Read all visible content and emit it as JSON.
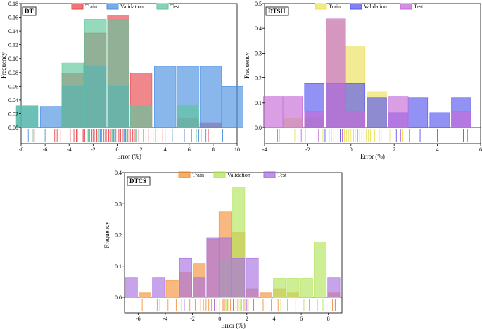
{
  "chart_data": [
    {
      "type": "bar",
      "panel_label": "DT",
      "xlabel": "Error (%)",
      "ylabel": "Frequency",
      "xlim": [
        -8,
        10
      ],
      "ylim": [
        0,
        0.18
      ],
      "xticks": [
        "-8",
        "-6",
        "-4",
        "-2",
        "0",
        "2",
        "4",
        "6",
        "8",
        "10"
      ],
      "yticks": [
        "0.00",
        "0.02",
        "0.04",
        "0.06",
        "0.08",
        "0.10",
        "0.12",
        "0.14",
        "0.16",
        "0.18"
      ],
      "legend_position": "top-center",
      "colors": {
        "Train": "#e8474c",
        "Validation": "#4a8fe0",
        "Test": "#5dc69b",
        "overlap": "#3b7c86"
      },
      "series": [
        {
          "name": "Train",
          "bins": [
            [
              -7.5,
              0.0
            ],
            [
              -5.5,
              0.0
            ],
            [
              -3.7,
              0.079
            ],
            [
              -1.8,
              0.137
            ],
            [
              0.1,
              0.163
            ],
            [
              2,
              0.079
            ],
            [
              4,
              0.0
            ],
            [
              5.9,
              0.014
            ],
            [
              7.8,
              0.007
            ]
          ],
          "rug": [
            -6.9,
            -5.2,
            -5.0,
            -4.7,
            -3.9,
            -3.6,
            -3.4,
            -3.1,
            -2.9,
            -2.7,
            -2.5,
            -2.3,
            -2.1,
            -1.9,
            -1.7,
            -1.5,
            -1.3,
            -1.1,
            -0.9,
            -0.7,
            -0.5,
            -0.3,
            -0.1,
            0.1,
            0.3,
            0.5,
            0.7,
            0.9,
            1.1,
            1.3,
            1.5,
            1.8,
            2.2,
            2.6,
            3.0,
            3.4,
            3.8,
            4.4,
            5.6,
            6.2,
            7.0,
            7.6
          ]
        },
        {
          "name": "Validation",
          "bins": [
            [
              -7.5,
              0.03
            ],
            [
              -5.5,
              0.03
            ],
            [
              -3.7,
              0.06
            ],
            [
              -1.8,
              0.089
            ],
            [
              0.1,
              0.06
            ],
            [
              2,
              0.0
            ],
            [
              4,
              0.089
            ],
            [
              5.9,
              0.089
            ],
            [
              7.8,
              0.089
            ],
            [
              9.6,
              0.06
            ]
          ],
          "rug": [
            -7.4,
            -6.0,
            -2.8,
            -2.0,
            -1.4,
            -0.6,
            -0.2,
            0.6,
            1.4,
            2.4,
            4.0,
            4.6,
            5.6,
            6.8,
            7.4,
            8.8
          ]
        },
        {
          "name": "Test",
          "bins": [
            [
              -7.5,
              0.032
            ],
            [
              -5.5,
              0.0
            ],
            [
              -3.7,
              0.094
            ],
            [
              -1.8,
              0.157
            ],
            [
              0.1,
              0.157
            ],
            [
              2,
              0.032
            ],
            [
              4,
              0.0
            ],
            [
              5.9,
              0.032
            ],
            [
              7.8,
              0.0
            ]
          ],
          "rug": [
            -7.0,
            -3.3,
            -2.4,
            -1.6,
            -1.0,
            -0.4,
            0.2,
            0.8,
            1.6,
            3.2,
            6.6
          ]
        }
      ]
    },
    {
      "type": "bar",
      "panel_label": "DTSH",
      "xlabel": "Error (%)",
      "ylabel": "Frequency",
      "xlim": [
        -4,
        6
      ],
      "ylim": [
        0,
        0.5
      ],
      "xticks": [
        "-4",
        "-2",
        "0",
        "2",
        "4",
        "6"
      ],
      "yticks": [
        "0.0",
        "0.1",
        "0.2",
        "0.3",
        "0.4",
        "0.5"
      ],
      "legend_position": "top-center",
      "colors": {
        "Train": "#ece15a",
        "Validation": "#5757f0",
        "Test": "#c46ad6",
        "overlap": "#7a25d0"
      },
      "series": [
        {
          "name": "Train",
          "bins": [
            [
              -3.6,
              0.0
            ],
            [
              -2.7,
              0.038
            ],
            [
              -1.7,
              0.04
            ],
            [
              -0.7,
              0.43
            ],
            [
              0.2,
              0.325
            ],
            [
              1.2,
              0.145
            ],
            [
              2.2,
              0.0
            ],
            [
              3.1,
              0.0
            ],
            [
              4.1,
              0.0
            ],
            [
              5.1,
              0.0
            ]
          ],
          "rug": [
            -3.3,
            -2.6,
            -2.1,
            -1.3,
            -1.0,
            -0.9,
            -0.8,
            -0.7,
            -0.6,
            -0.5,
            -0.4,
            -0.3,
            -0.2,
            -0.1,
            0.0,
            0.1,
            0.2,
            0.3,
            0.4,
            0.5,
            0.6,
            0.7,
            0.8,
            0.9,
            1.1,
            1.4,
            1.8,
            2.4
          ]
        },
        {
          "name": "Validation",
          "bins": [
            [
              -3.6,
              0.0
            ],
            [
              -2.7,
              0.0
            ],
            [
              -1.7,
              0.178
            ],
            [
              -0.7,
              0.178
            ],
            [
              0.2,
              0.178
            ],
            [
              1.2,
              0.12
            ],
            [
              2.2,
              0.06
            ],
            [
              3.1,
              0.12
            ],
            [
              4.1,
              0.06
            ],
            [
              5.1,
              0.12
            ]
          ],
          "rug": [
            -1.9,
            -1.2,
            -0.5,
            0.3,
            1.3,
            2.1,
            3.2,
            4.0,
            5.2
          ]
        },
        {
          "name": "Test",
          "bins": [
            [
              -3.6,
              0.126
            ],
            [
              -2.7,
              0.126
            ],
            [
              -1.7,
              0.064
            ],
            [
              -0.7,
              0.438
            ],
            [
              0.2,
              0.064
            ],
            [
              1.2,
              0.0
            ],
            [
              2.2,
              0.126
            ],
            [
              3.1,
              0.0
            ],
            [
              4.1,
              0.0
            ],
            [
              5.1,
              0.064
            ]
          ],
          "rug": [
            -3.4,
            -2.3,
            -1.5,
            -0.6,
            -0.4,
            0.1,
            2.3,
            2.7,
            5.4
          ]
        }
      ]
    },
    {
      "type": "bar",
      "panel_label": "DTCS",
      "xlabel": "Error (%)",
      "ylabel": "Frequency",
      "xlim": [
        -7,
        9
      ],
      "ylim": [
        0,
        0.4
      ],
      "xticks": [
        "-6",
        "-4",
        "-2",
        "0",
        "2",
        "4",
        "6",
        "8"
      ],
      "yticks": [
        "0.0",
        "0.1",
        "0.2",
        "0.3",
        "0.4"
      ],
      "legend_position": "top-center",
      "colors": {
        "Train": "#f5923a",
        "Validation": "#b4e55c",
        "Test": "#a772e0",
        "overlap": "#a8307a"
      },
      "series": [
        {
          "name": "Train",
          "bins": [
            [
              -6.5,
              0.0
            ],
            [
              -5.5,
              0.014
            ],
            [
              -4.5,
              0.0
            ],
            [
              -3.5,
              0.054
            ],
            [
              -2.5,
              0.08
            ],
            [
              -1.5,
              0.107
            ],
            [
              -0.5,
              0.187
            ],
            [
              0.4,
              0.274
            ],
            [
              1.4,
              0.208
            ],
            [
              2.4,
              0.027
            ],
            [
              3.4,
              0.014
            ],
            [
              4.4,
              0.027
            ],
            [
              5.4,
              0.014
            ],
            [
              6.4,
              0.0
            ],
            [
              7.4,
              0.0
            ],
            [
              8.4,
              0.014
            ]
          ],
          "rug": [
            -5.7,
            -4.6,
            -3.8,
            -3.2,
            -2.8,
            -2.2,
            -1.8,
            -1.4,
            -1.0,
            -0.8,
            -0.6,
            -0.4,
            -0.2,
            0.0,
            0.2,
            0.4,
            0.6,
            0.8,
            1.0,
            1.2,
            1.4,
            1.6,
            1.8,
            2.1,
            2.6,
            3.2,
            3.8,
            4.3,
            5.0,
            5.6,
            6.6,
            8.3
          ]
        },
        {
          "name": "Validation",
          "bins": [
            [
              -6.5,
              0.0
            ],
            [
              -5.5,
              0.0
            ],
            [
              -4.5,
              0.0
            ],
            [
              -3.5,
              0.0
            ],
            [
              -2.5,
              0.0
            ],
            [
              -1.5,
              0.0
            ],
            [
              -0.5,
              0.0
            ],
            [
              0.4,
              0.12
            ],
            [
              1.4,
              0.353
            ],
            [
              2.4,
              0.0
            ],
            [
              3.4,
              0.0
            ],
            [
              4.4,
              0.06
            ],
            [
              5.4,
              0.06
            ],
            [
              6.4,
              0.06
            ],
            [
              7.4,
              0.178
            ],
            [
              8.4,
              0.0
            ]
          ],
          "rug": [
            0.5,
            1.3,
            1.5,
            1.9,
            4.5,
            5.4,
            6.2,
            7.2,
            7.6
          ]
        },
        {
          "name": "Test",
          "bins": [
            [
              -6.5,
              0.064
            ],
            [
              -5.5,
              0.0
            ],
            [
              -4.5,
              0.064
            ],
            [
              -3.5,
              0.0
            ],
            [
              -2.5,
              0.126
            ],
            [
              -1.5,
              0.064
            ],
            [
              -0.5,
              0.19
            ],
            [
              0.4,
              0.19
            ],
            [
              1.4,
              0.126
            ],
            [
              2.4,
              0.126
            ],
            [
              3.4,
              0.0
            ],
            [
              4.4,
              0.0
            ],
            [
              5.4,
              0.0
            ],
            [
              6.4,
              0.0
            ],
            [
              7.4,
              0.0
            ],
            [
              8.4,
              0.064
            ]
          ],
          "rug": [
            -6.3,
            -4.4,
            -2.6,
            -1.2,
            -0.4,
            0.3,
            1.0,
            2.0,
            2.5,
            8.5
          ]
        }
      ]
    }
  ]
}
